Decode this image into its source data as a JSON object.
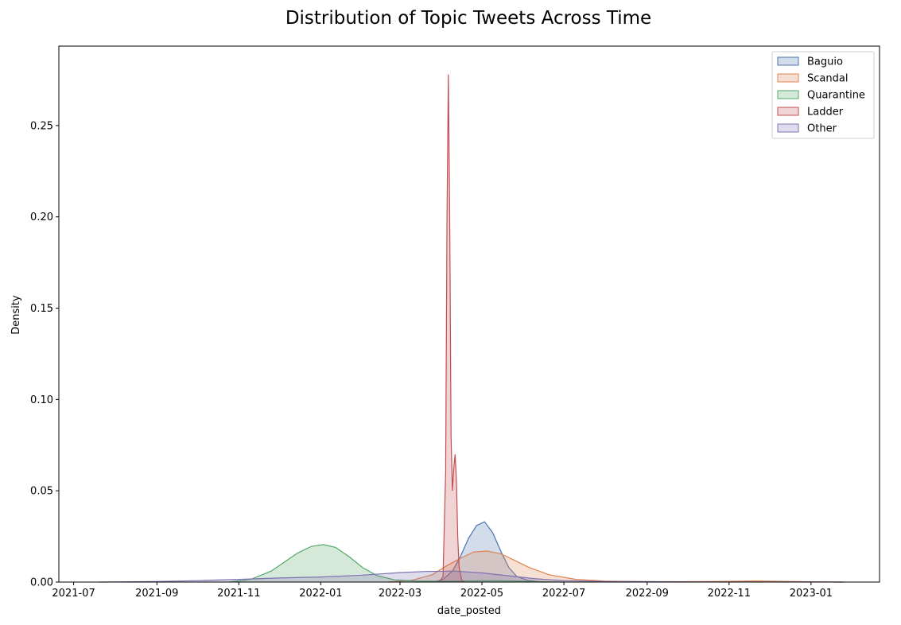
{
  "chart_data": {
    "type": "area",
    "title": "Distribution of Topic Tweets Across Time",
    "xlabel": "date_posted",
    "ylabel": "Density",
    "xlim": [
      "2021-06-20",
      "2023-02-21"
    ],
    "ylim": [
      0,
      0.2935
    ],
    "x_ticks": [
      "2021-07",
      "2021-09",
      "2021-11",
      "2022-01",
      "2022-03",
      "2022-05",
      "2022-07",
      "2022-09",
      "2022-11",
      "2023-01"
    ],
    "y_ticks": [
      0.0,
      0.05,
      0.1,
      0.15,
      0.2,
      0.25
    ],
    "y_tick_labels": [
      "0.00",
      "0.05",
      "0.10",
      "0.15",
      "0.20",
      "0.25"
    ],
    "legend_position": "top-right",
    "grid": false,
    "series": [
      {
        "name": "Baguio",
        "color": "#4c72b0",
        "x": [
          "2022-03-26",
          "2022-04-02",
          "2022-04-09",
          "2022-04-15",
          "2022-04-21",
          "2022-04-27",
          "2022-05-03",
          "2022-05-09",
          "2022-05-15",
          "2022-05-21",
          "2022-05-27",
          "2022-06-04",
          "2022-06-15"
        ],
        "y": [
          0.0,
          0.0015,
          0.006,
          0.014,
          0.024,
          0.031,
          0.033,
          0.027,
          0.017,
          0.008,
          0.003,
          0.001,
          0.0
        ]
      },
      {
        "name": "Scandal",
        "color": "#dd8452",
        "x": [
          "2022-02-20",
          "2022-03-10",
          "2022-03-25",
          "2022-04-05",
          "2022-04-15",
          "2022-04-25",
          "2022-05-05",
          "2022-05-15",
          "2022-05-25",
          "2022-06-05",
          "2022-06-20",
          "2022-07-10",
          "2022-08-01",
          "2022-09-01",
          "2022-10-01",
          "2022-11-01",
          "2022-11-20",
          "2022-12-10",
          "2023-01-10",
          "2023-01-25"
        ],
        "y": [
          0.0,
          0.001,
          0.004,
          0.009,
          0.013,
          0.0165,
          0.017,
          0.0155,
          0.012,
          0.008,
          0.004,
          0.0015,
          0.0005,
          0.0002,
          0.0002,
          0.0004,
          0.0006,
          0.0004,
          0.0001,
          0.0
        ]
      },
      {
        "name": "Quarantine",
        "color": "#55a868",
        "x": [
          "2021-10-25",
          "2021-11-10",
          "2021-11-25",
          "2021-12-05",
          "2021-12-15",
          "2021-12-25",
          "2022-01-03",
          "2022-01-12",
          "2022-01-22",
          "2022-02-01",
          "2022-02-12",
          "2022-02-25",
          "2022-03-15",
          "2022-04-10",
          "2022-05-05",
          "2022-05-25",
          "2022-06-15",
          "2022-07-01"
        ],
        "y": [
          0.0,
          0.0015,
          0.006,
          0.011,
          0.016,
          0.0195,
          0.0205,
          0.019,
          0.014,
          0.008,
          0.0035,
          0.0012,
          0.0005,
          0.0005,
          0.0008,
          0.0006,
          0.0002,
          0.0
        ]
      },
      {
        "name": "Ladder",
        "color": "#c44e52",
        "x": [
          "2022-03-30",
          "2022-04-02",
          "2022-04-04",
          "2022-04-05",
          "2022-04-06",
          "2022-04-07",
          "2022-04-08",
          "2022-04-09",
          "2022-04-10",
          "2022-04-11",
          "2022-04-12",
          "2022-04-13",
          "2022-04-14",
          "2022-04-16",
          "2022-04-18"
        ],
        "y": [
          0.0,
          0.003,
          0.06,
          0.2,
          0.278,
          0.2,
          0.08,
          0.05,
          0.062,
          0.07,
          0.055,
          0.025,
          0.008,
          0.001,
          0.0
        ]
      },
      {
        "name": "Other",
        "color": "#8172b3",
        "x": [
          "2021-07-20",
          "2021-09-01",
          "2021-10-01",
          "2021-11-01",
          "2021-12-01",
          "2022-01-01",
          "2022-02-01",
          "2022-03-01",
          "2022-03-20",
          "2022-04-10",
          "2022-05-01",
          "2022-05-20",
          "2022-06-10",
          "2022-07-01",
          "2022-08-01",
          "2022-09-01",
          "2022-10-01",
          "2022-11-01",
          "2022-12-01",
          "2023-01-01",
          "2023-01-25"
        ],
        "y": [
          0.0,
          0.0003,
          0.0008,
          0.0015,
          0.0022,
          0.0028,
          0.0038,
          0.0052,
          0.0058,
          0.006,
          0.005,
          0.0035,
          0.0018,
          0.0008,
          0.0003,
          0.0002,
          0.0001,
          0.0001,
          0.0001,
          0.0001,
          0.0
        ]
      }
    ]
  }
}
